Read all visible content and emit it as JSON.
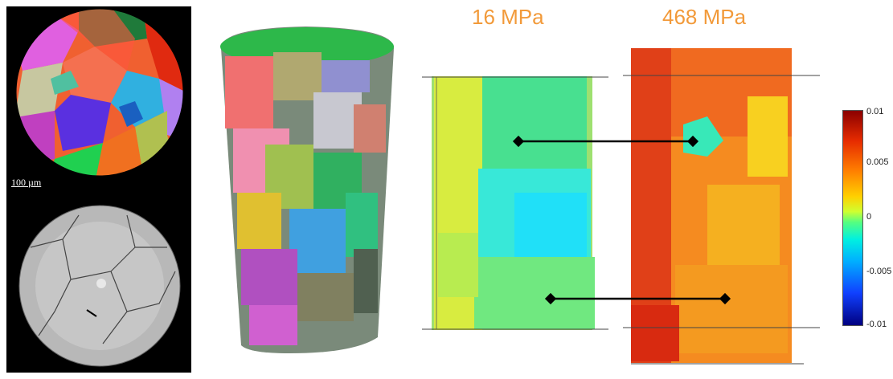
{
  "scale_bar": {
    "label": "100 µm"
  },
  "panels": {
    "left_pressure": "16 MPa",
    "right_pressure": "468 MPa"
  },
  "colorbar": {
    "ticks": [
      "0.01",
      "0.005",
      "0",
      "-0.005",
      "-0.01"
    ],
    "colors": {
      "max": "#8b0000",
      "mid": "#ffd000",
      "zero": "#55ff80",
      "min": "#000080"
    }
  },
  "accent_color": "#f29a3a"
}
